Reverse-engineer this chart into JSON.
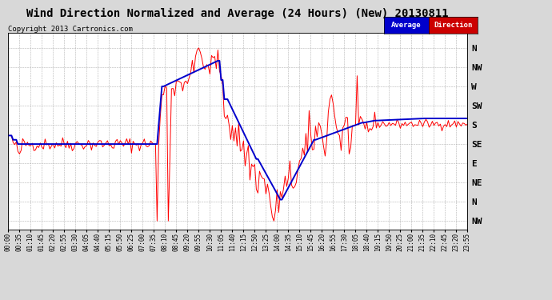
{
  "title": "Wind Direction Normalized and Average (24 Hours) (New) 20130811",
  "copyright": "Copyright 2013 Cartronics.com",
  "background_color": "#d8d8d8",
  "plot_bg_color": "#ffffff",
  "grid_color": "#aaaaaa",
  "y_labels": [
    "N",
    "NW",
    "W",
    "SW",
    "S",
    "SE",
    "E",
    "NE",
    "N",
    "NW"
  ],
  "y_ticks": [
    360,
    315,
    270,
    225,
    180,
    135,
    90,
    45,
    0,
    -45
  ],
  "ylim": [
    -65,
    395
  ],
  "avg_line_color": "#0000cc",
  "dir_line_color": "#ff0000",
  "title_fontsize": 10,
  "tick_fontsize": 5.5,
  "ylabel_fontsize": 8,
  "legend_avg_color": "#0000cc",
  "legend_dir_color": "#cc0000"
}
